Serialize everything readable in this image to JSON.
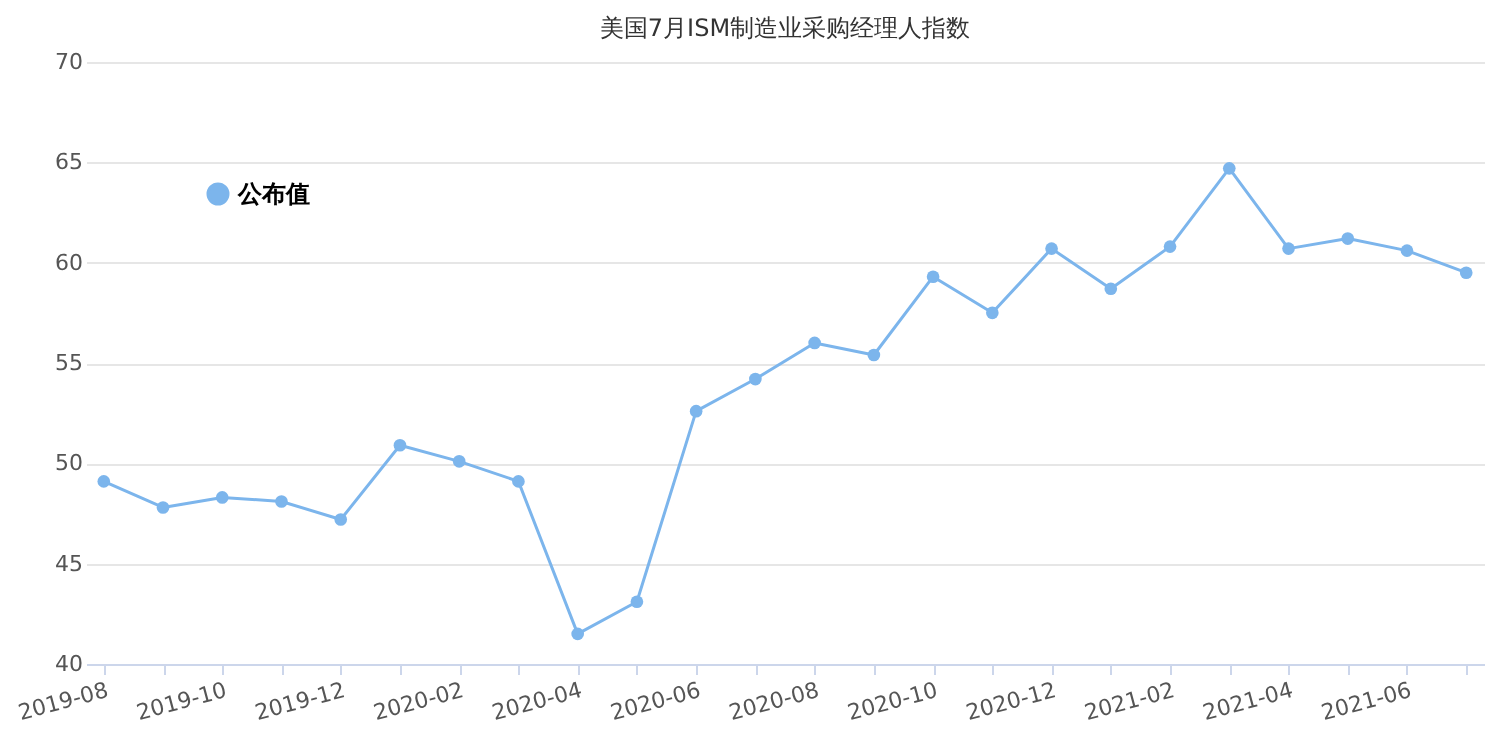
{
  "chart_data": {
    "type": "line",
    "title": "美国7月ISM制造业采购经理人指数",
    "categories": [
      "2019-08",
      null,
      "2019-10",
      null,
      "2019-12",
      null,
      "2020-02",
      null,
      "2020-04",
      null,
      "2020-06",
      null,
      "2020-08",
      null,
      "2020-10",
      null,
      "2020-12",
      null,
      "2021-02",
      null,
      "2021-04",
      null,
      "2021-06",
      null
    ],
    "series": [
      {
        "name": "公布值",
        "color": "#7cb5ec",
        "values": [
          49.1,
          47.8,
          48.3,
          48.1,
          47.2,
          50.9,
          50.1,
          49.1,
          41.5,
          43.1,
          52.6,
          54.2,
          56.0,
          55.4,
          59.3,
          57.5,
          60.7,
          58.7,
          60.8,
          64.7,
          60.7,
          61.2,
          60.6,
          59.5
        ]
      }
    ],
    "ylim": [
      40,
      70
    ],
    "yticks": [
      40,
      45,
      50,
      55,
      60,
      65,
      70
    ],
    "grid": "y",
    "legend": "top left",
    "marker": "circle",
    "line_style": "solid"
  }
}
